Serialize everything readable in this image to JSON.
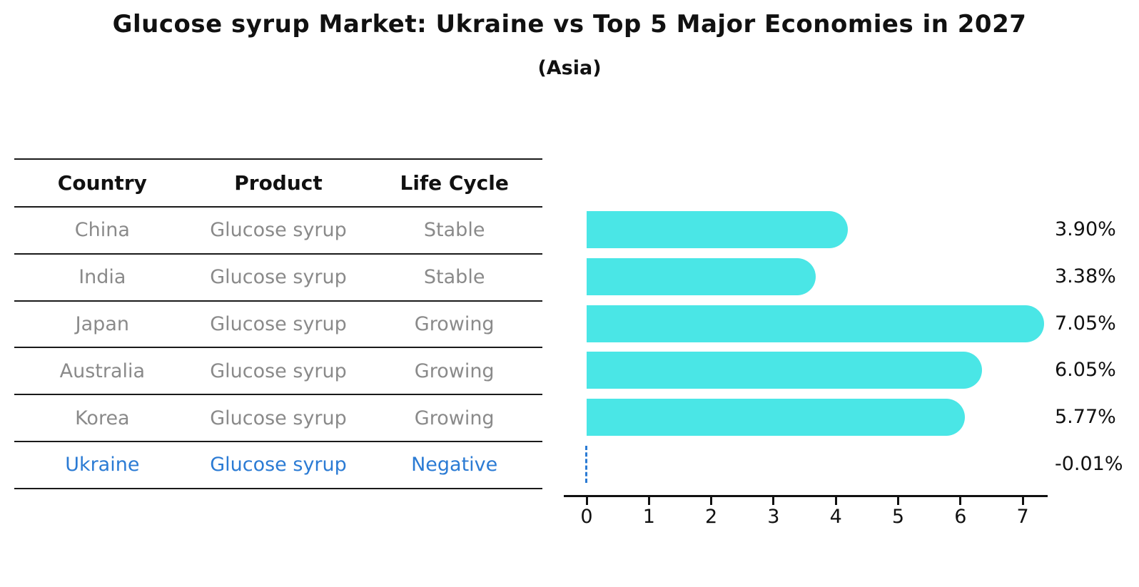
{
  "title": "Glucose syrup Market: Ukraine vs Top 5 Major Economies in 2027",
  "subtitle": "(Asia)",
  "colors": {
    "bar": "#4AE6E6",
    "highlight": "#2B7BD4",
    "table_text": "#8a8a8a",
    "heading_text": "#111111"
  },
  "table": {
    "columns": [
      "Country",
      "Product",
      "Life Cycle"
    ],
    "rows": [
      {
        "country": "China",
        "product": "Glucose syrup",
        "life_cycle": "Stable",
        "highlight": false
      },
      {
        "country": "India",
        "product": "Glucose syrup",
        "life_cycle": "Stable",
        "highlight": false
      },
      {
        "country": "Japan",
        "product": "Glucose syrup",
        "life_cycle": "Growing",
        "highlight": false
      },
      {
        "country": "Australia",
        "product": "Glucose syrup",
        "life_cycle": "Growing",
        "highlight": false
      },
      {
        "country": "Korea",
        "product": "Glucose syrup",
        "life_cycle": "Growing",
        "highlight": false
      },
      {
        "country": "Ukraine",
        "product": "Glucose syrup",
        "life_cycle": "Negative",
        "highlight": true
      }
    ]
  },
  "chart_data": {
    "type": "bar",
    "orientation": "horizontal",
    "title": "Glucose syrup Market: Ukraine vs Top 5 Major Economies in 2027 (Asia)",
    "categories": [
      "China",
      "India",
      "Japan",
      "Australia",
      "Korea",
      "Ukraine"
    ],
    "values": [
      3.9,
      3.38,
      7.05,
      6.05,
      5.77,
      -0.01
    ],
    "value_labels": [
      "3.90%",
      "3.38%",
      "7.05%",
      "6.05%",
      "5.77%",
      "-0.01%"
    ],
    "xticks": [
      "0",
      "1",
      "2",
      "3",
      "4",
      "5",
      "6",
      "7"
    ],
    "xlim": [
      0,
      7.4
    ],
    "xlabel": "",
    "ylabel": "",
    "grid": false,
    "legend": null
  }
}
